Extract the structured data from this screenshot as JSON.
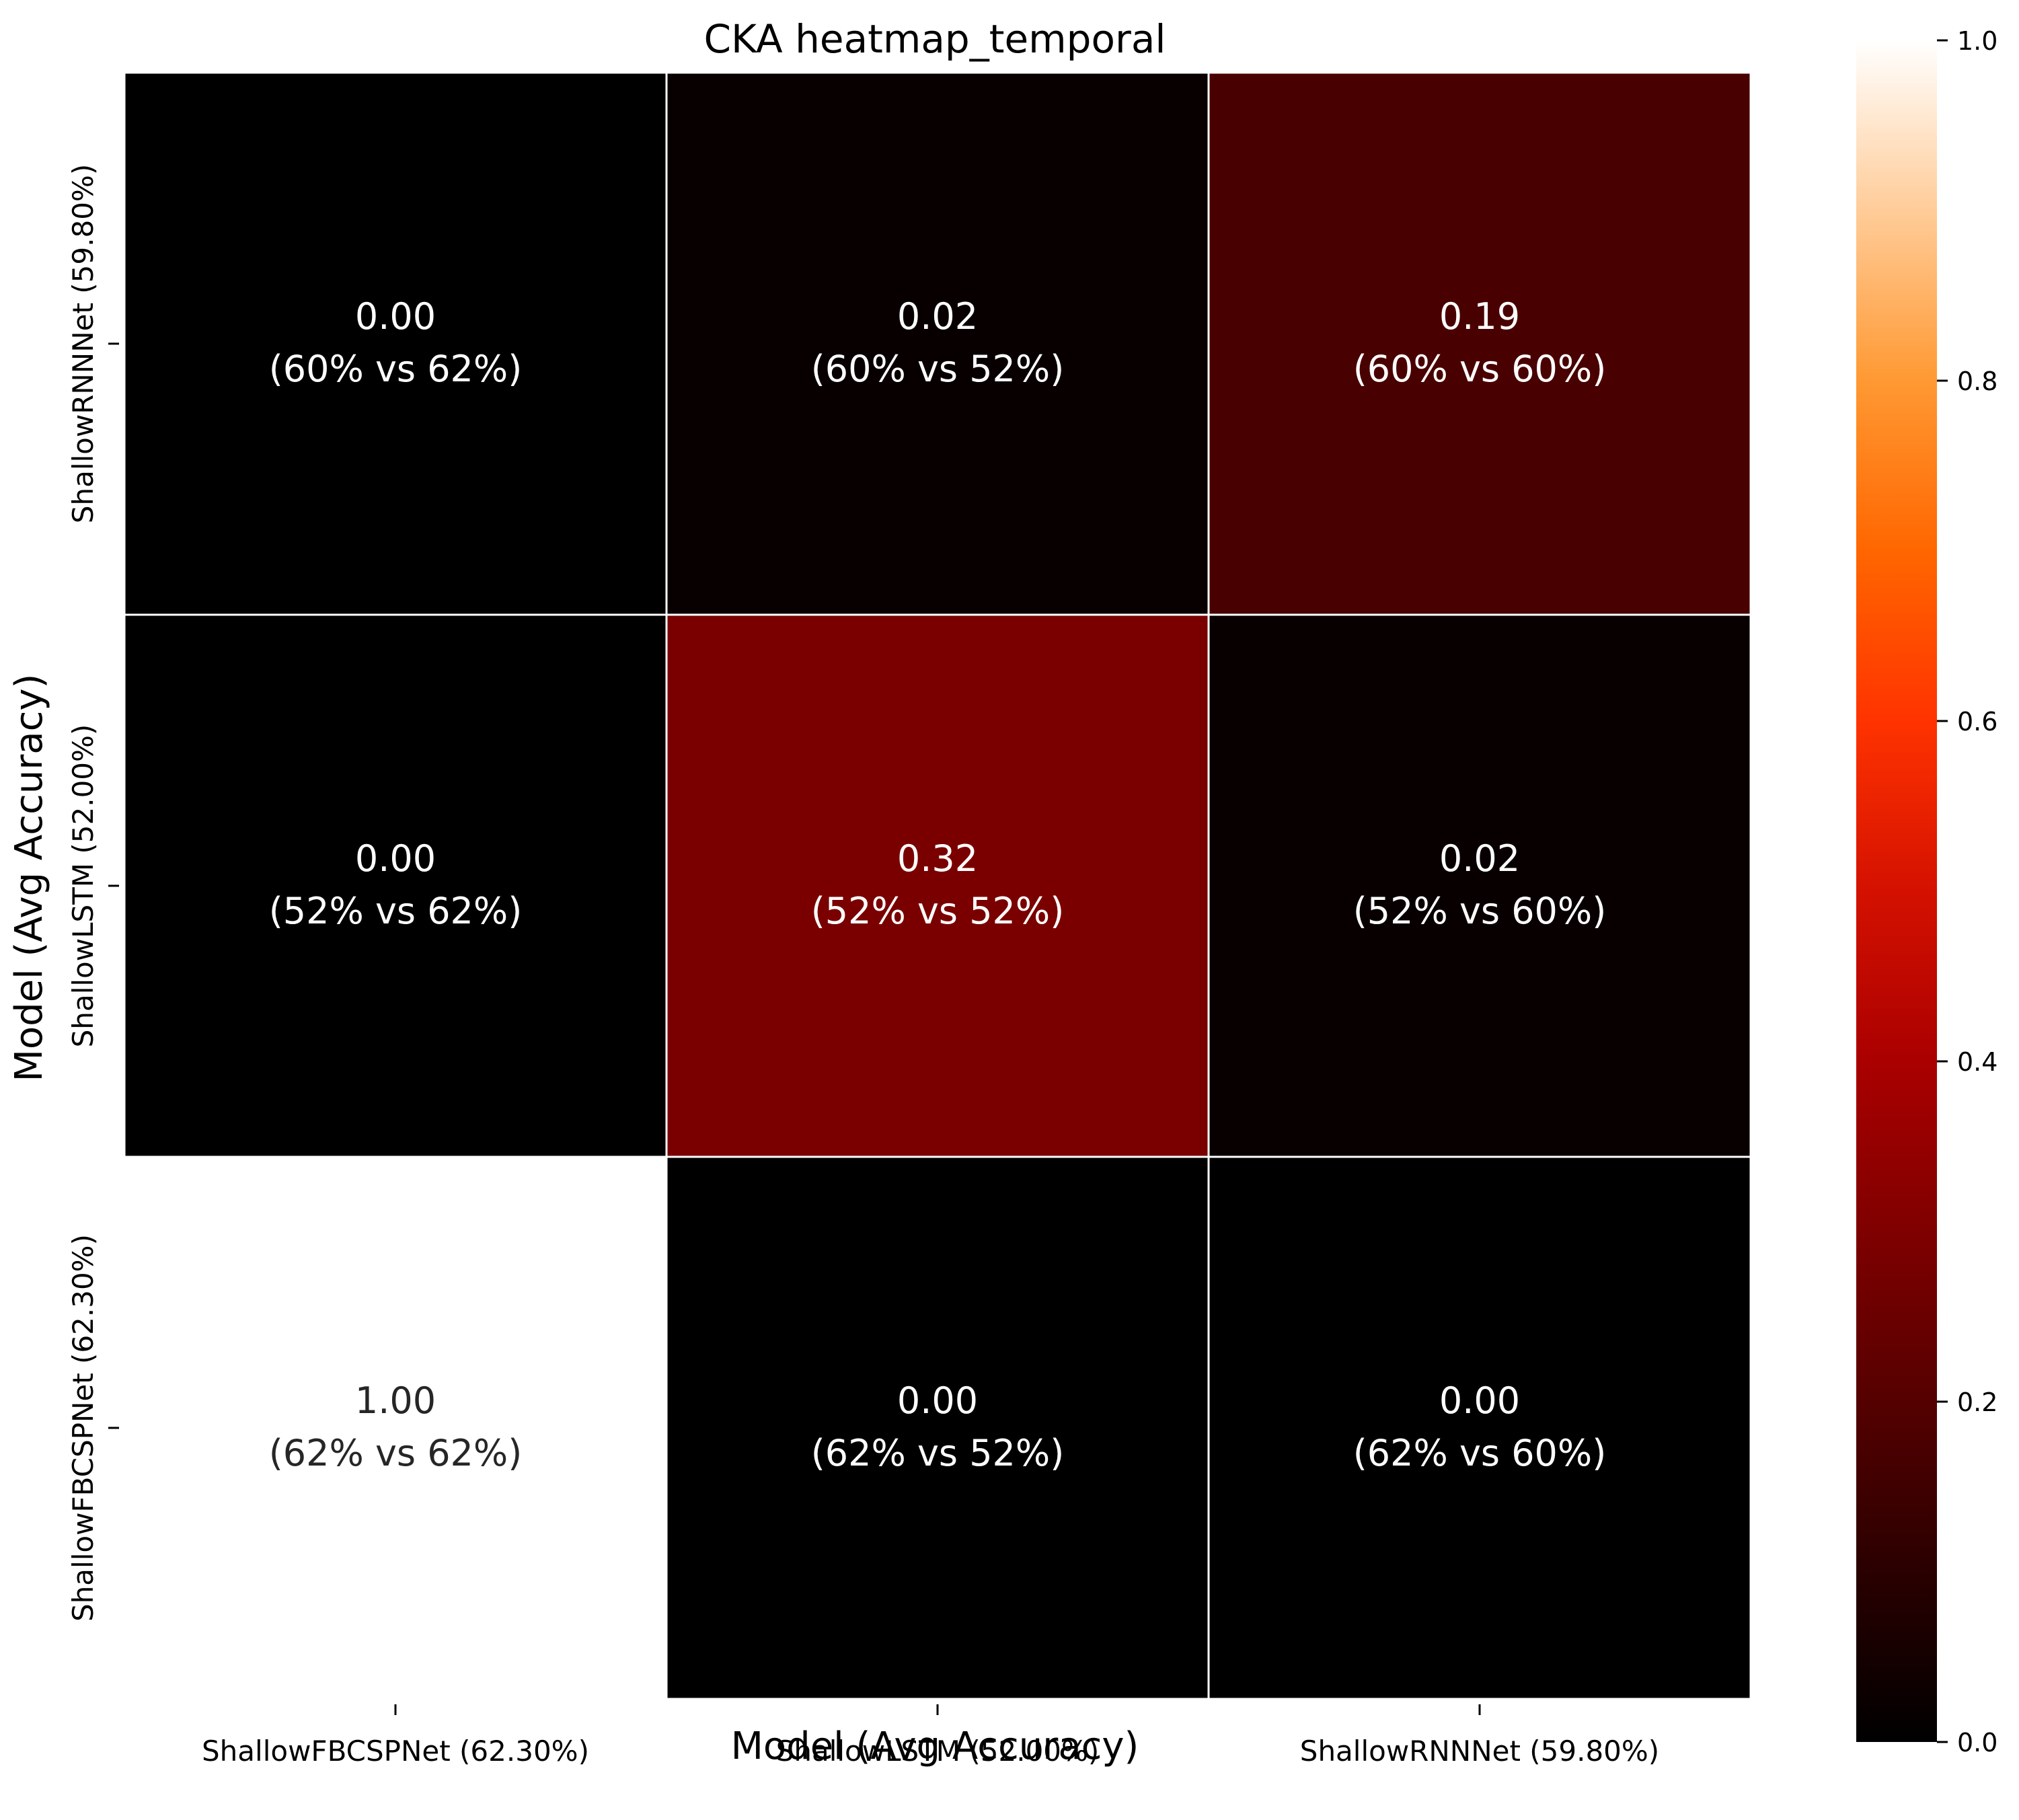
{
  "chart_data": {
    "type": "heatmap",
    "title": "CKA heatmap_temporal",
    "xlabel": "Model (Avg Accuracy)",
    "ylabel": "Model (Avg Accuracy)",
    "x_categories": [
      "ShallowFBCSPNet (62.30%)",
      "ShallowLSTM (52.00%)",
      "ShallowRNNNet (59.80%)"
    ],
    "y_categories": [
      "ShallowRNNNet (59.80%)",
      "ShallowLSTM (52.00%)",
      "ShallowFBCSPNet (62.30%)"
    ],
    "values": [
      [
        0.0,
        0.02,
        0.19
      ],
      [
        0.0,
        0.32,
        0.02
      ],
      [
        1.0,
        0.0,
        0.0
      ]
    ],
    "annotations": [
      [
        "0.00\n(60% vs 62%)",
        "0.02\n(60% vs 52%)",
        "0.19\n(60% vs 60%)"
      ],
      [
        "0.00\n(52% vs 62%)",
        "0.32\n(52% vs 52%)",
        "0.02\n(52% vs 60%)"
      ],
      [
        "1.00\n(62% vs 62%)",
        "0.00\n(62% vs 52%)",
        "0.00\n(62% vs 60%)"
      ]
    ],
    "colorbar": {
      "range": [
        0.0,
        1.0
      ],
      "ticks": [
        "0.0",
        "0.2",
        "0.4",
        "0.6",
        "0.8",
        "1.0"
      ],
      "colormap": "gist_heat"
    },
    "colors": {
      "cell_border": "#ffffff",
      "text_light": "#ffffff",
      "text_dark": "#262626",
      "axis": "#000000"
    }
  }
}
